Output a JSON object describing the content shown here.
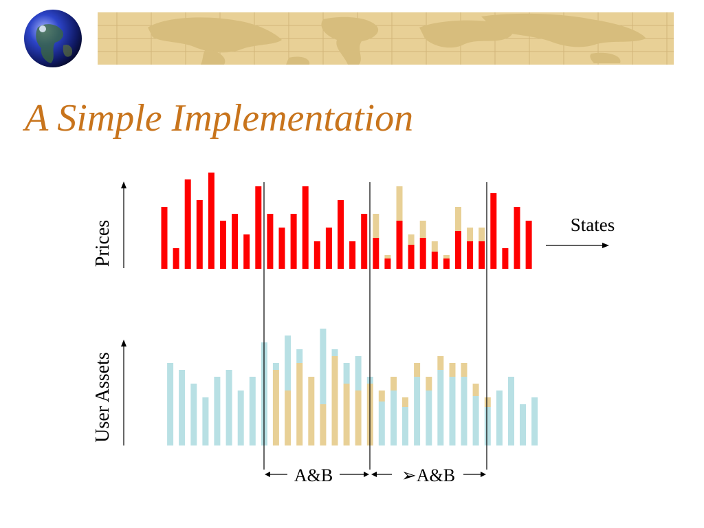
{
  "slide": {
    "title": "A Simple Implementation"
  },
  "colors": {
    "title": "#c8741c",
    "price": "#ff0000",
    "asset": "#b8e0e4",
    "shared": "#e8d096",
    "banner": "#e8d096",
    "map": "#d7bd7d",
    "line": "#000000"
  },
  "icons": {
    "banner_left": "globe-icon"
  },
  "diagram": {
    "prices_axis_label": "Prices",
    "assets_axis_label": "User Assets",
    "states_label": "States",
    "region_labels": [
      "A&B",
      "➢A&B"
    ]
  },
  "chart_data": {
    "type": "bar",
    "title": "",
    "states_count": 32,
    "region_1": [
      9,
      18
    ],
    "region_2": [
      18,
      28
    ],
    "prices": {
      "red": [
        90,
        30,
        130,
        100,
        140,
        70,
        80,
        50,
        120,
        80,
        60,
        80,
        120,
        40,
        60,
        100,
        40,
        80,
        45,
        15,
        70,
        35,
        45,
        25,
        15,
        55,
        40,
        40,
        110,
        30,
        90,
        70
      ],
      "total": [
        90,
        30,
        130,
        100,
        140,
        70,
        80,
        50,
        120,
        80,
        60,
        80,
        120,
        40,
        60,
        100,
        40,
        80,
        80,
        20,
        120,
        50,
        70,
        40,
        20,
        90,
        60,
        60,
        110,
        30,
        90,
        70
      ]
    },
    "assets": {
      "shared": [
        0,
        0,
        0,
        0,
        0,
        0,
        0,
        0,
        0,
        110,
        80,
        120,
        100,
        60,
        130,
        90,
        80,
        90,
        0,
        0,
        0,
        0,
        0,
        0,
        0,
        0,
        0,
        0,
        0,
        0,
        0,
        0
      ],
      "total": [
        120,
        110,
        90,
        70,
        100,
        110,
        80,
        100,
        150,
        120,
        160,
        140,
        100,
        170,
        140,
        120,
        130,
        100,
        80,
        100,
        70,
        120,
        100,
        130,
        120,
        120,
        90,
        70,
        80,
        100,
        60,
        70
      ]
    }
  }
}
